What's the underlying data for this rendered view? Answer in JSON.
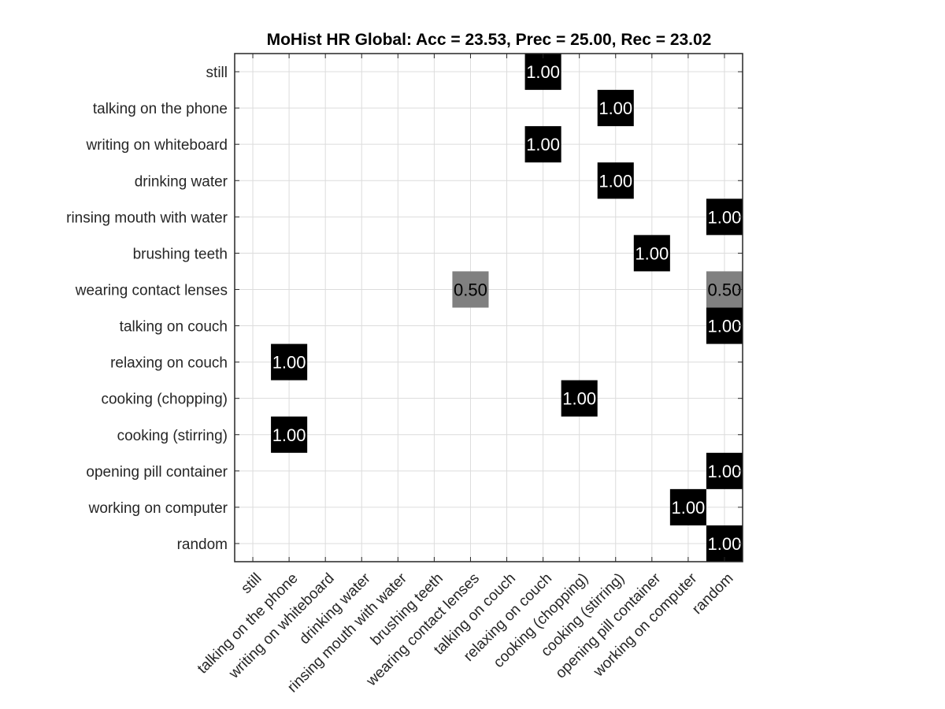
{
  "chart_data": {
    "type": "heatmap",
    "title": "MoHist HR Global: Acc = 23.53, Prec = 25.00, Rec = 23.02",
    "xlabel": "",
    "ylabel": "",
    "grid": true,
    "colormap": "gray (higher value = darker)",
    "value_range": [
      0,
      1
    ],
    "row_labels": [
      "still",
      "talking on the phone",
      "writing on whiteboard",
      "drinking water",
      "rinsing mouth with water",
      "brushing teeth",
      "wearing contact lenses",
      "talking on couch",
      "relaxing on couch",
      "cooking (chopping)",
      "cooking (stirring)",
      "opening pill container",
      "working on computer",
      "random"
    ],
    "column_labels": [
      "still",
      "talking on the phone",
      "writing on whiteboard",
      "drinking water",
      "rinsing mouth with water",
      "brushing teeth",
      "wearing contact lenses",
      "talking on couch",
      "relaxing on couch",
      "cooking (chopping)",
      "cooking (stirring)",
      "opening pill container",
      "working on computer",
      "random"
    ],
    "cells": [
      {
        "row": 0,
        "col": 8,
        "value": 1.0,
        "label": "1.00"
      },
      {
        "row": 1,
        "col": 10,
        "value": 1.0,
        "label": "1.00"
      },
      {
        "row": 2,
        "col": 8,
        "value": 1.0,
        "label": "1.00"
      },
      {
        "row": 3,
        "col": 10,
        "value": 1.0,
        "label": "1.00"
      },
      {
        "row": 4,
        "col": 13,
        "value": 1.0,
        "label": "1.00"
      },
      {
        "row": 5,
        "col": 11,
        "value": 1.0,
        "label": "1.00"
      },
      {
        "row": 6,
        "col": 6,
        "value": 0.5,
        "label": "0.50"
      },
      {
        "row": 6,
        "col": 13,
        "value": 0.5,
        "label": "0.50"
      },
      {
        "row": 7,
        "col": 13,
        "value": 1.0,
        "label": "1.00"
      },
      {
        "row": 8,
        "col": 1,
        "value": 1.0,
        "label": "1.00"
      },
      {
        "row": 9,
        "col": 9,
        "value": 1.0,
        "label": "1.00"
      },
      {
        "row": 10,
        "col": 1,
        "value": 1.0,
        "label": "1.00"
      },
      {
        "row": 11,
        "col": 13,
        "value": 1.0,
        "label": "1.00"
      },
      {
        "row": 12,
        "col": 12,
        "value": 1.0,
        "label": "1.00"
      },
      {
        "row": 13,
        "col": 13,
        "value": 1.0,
        "label": "1.00"
      }
    ]
  }
}
